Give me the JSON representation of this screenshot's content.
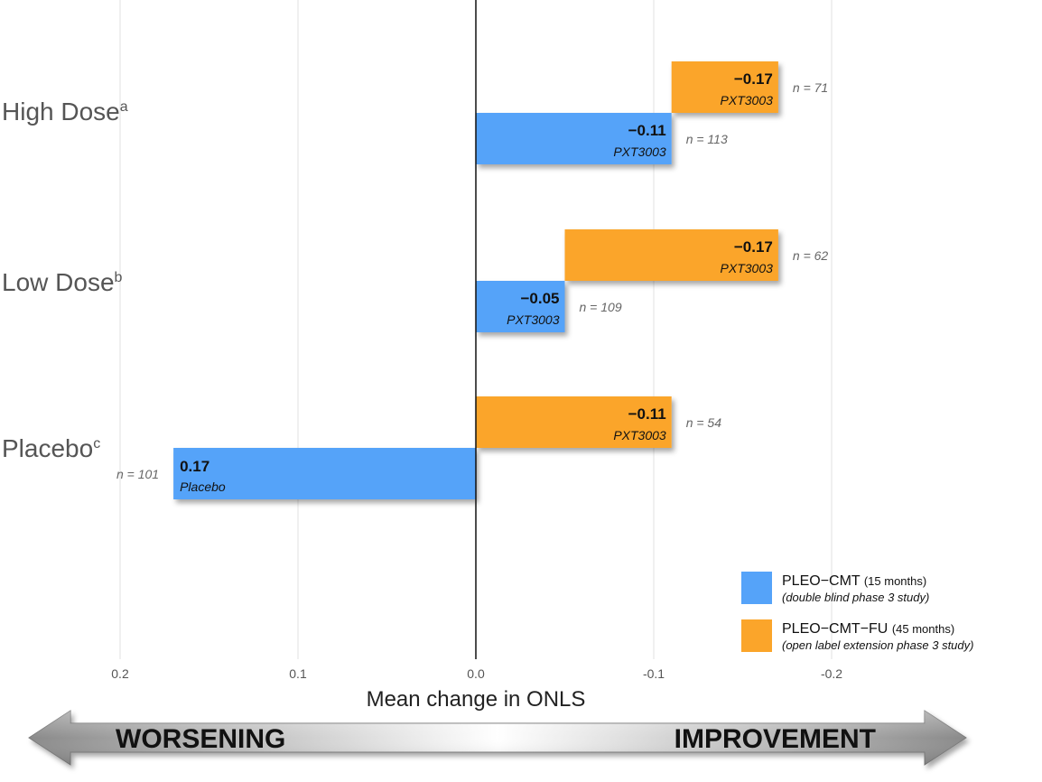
{
  "chart_data": {
    "type": "bar",
    "orientation": "horizontal",
    "categories": [
      {
        "label": "High Dose",
        "sup": "a"
      },
      {
        "label": "Low Dose",
        "sup": "b"
      },
      {
        "label": "Placebo",
        "sup": "c"
      }
    ],
    "series": [
      {
        "name": "PLEO−CMT",
        "duration": "(15 months)",
        "description": "(double blind phase 3 study)",
        "color": "#55a3f9",
        "values": [
          -0.11,
          -0.05,
          0.17
        ],
        "value_labels": [
          "−0.11",
          "−0.05",
          "0.17"
        ],
        "sub_labels": [
          "PXT3003",
          "PXT3003",
          "Placebo"
        ],
        "n_labels": [
          "n = 113",
          "n = 109",
          "n = 101"
        ]
      },
      {
        "name": "PLEO−CMT−FU",
        "duration": "(45 months)",
        "description": "(open label extension phase 3 study)",
        "color": "#fba52a",
        "starts": [
          -0.11,
          -0.05,
          0.0
        ],
        "values": [
          -0.17,
          -0.17,
          -0.11
        ],
        "value_labels": [
          "−0.17",
          "−0.17",
          "−0.11"
        ],
        "sub_labels": [
          "PXT3003",
          "PXT3003",
          "PXT3003"
        ],
        "n_labels": [
          "n = 71",
          "n = 62",
          "n = 54"
        ]
      }
    ],
    "xlabel": "Mean change in ONLS",
    "xlim": [
      0.2,
      -0.2
    ],
    "xaxis_reversed": true,
    "xticks": [
      0.2,
      0.1,
      0.0,
      -0.1,
      -0.2
    ],
    "xtick_labels": [
      "0.2",
      "0.1",
      "0.0",
      "-0.1",
      "-0.2"
    ],
    "grid": true,
    "legend_position": "bottom-right"
  },
  "direction_arrow": {
    "left_label": "WORSENING",
    "right_label": "IMPROVEMENT"
  }
}
